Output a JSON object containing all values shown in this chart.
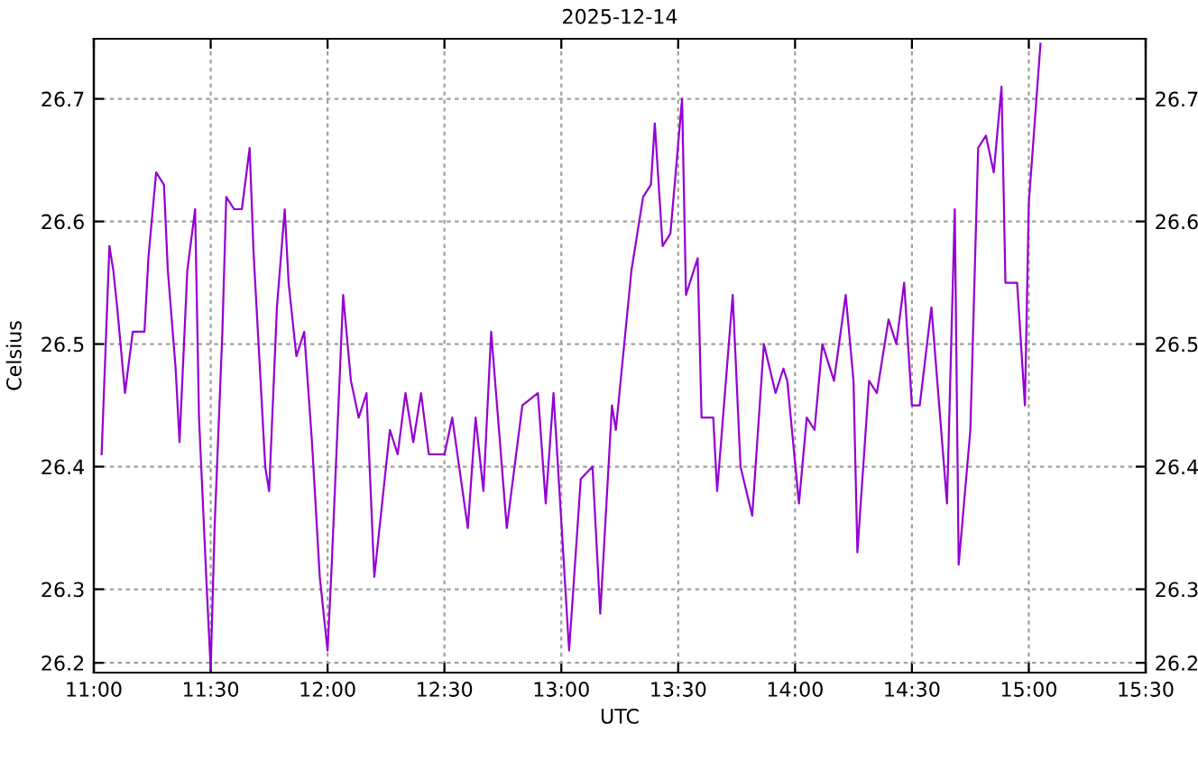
{
  "chart_data": {
    "type": "line",
    "title": "2025-12-14",
    "xlabel": "UTC",
    "ylabel": "Celsius",
    "x": [
      "2025-12-14T11:02",
      "2025-12-14T11:04",
      "2025-12-14T11:05",
      "2025-12-14T11:06",
      "2025-12-14T11:08",
      "2025-12-14T11:10",
      "2025-12-14T11:13",
      "2025-12-14T11:14",
      "2025-12-14T11:16",
      "2025-12-14T11:18",
      "2025-12-14T11:19",
      "2025-12-14T11:21",
      "2025-12-14T11:22",
      "2025-12-14T11:24",
      "2025-12-14T11:26",
      "2025-12-14T11:27",
      "2025-12-14T11:29",
      "2025-12-14T11:30",
      "2025-12-14T11:31",
      "2025-12-14T11:33",
      "2025-12-14T11:34",
      "2025-12-14T11:36",
      "2025-12-14T11:38",
      "2025-12-14T11:40",
      "2025-12-14T11:41",
      "2025-12-14T11:44",
      "2025-12-14T11:45",
      "2025-12-14T11:47",
      "2025-12-14T11:49",
      "2025-12-14T11:50",
      "2025-12-14T11:52",
      "2025-12-14T11:54",
      "2025-12-14T11:56",
      "2025-12-14T11:58",
      "2025-12-14T12:00",
      "2025-12-14T12:01",
      "2025-12-14T12:04",
      "2025-12-14T12:06",
      "2025-12-14T12:08",
      "2025-12-14T12:10",
      "2025-12-14T12:12",
      "2025-12-14T12:15",
      "2025-12-14T12:16",
      "2025-12-14T12:18",
      "2025-12-14T12:20",
      "2025-12-14T12:22",
      "2025-12-14T12:24",
      "2025-12-14T12:26",
      "2025-12-14T12:30",
      "2025-12-14T12:32",
      "2025-12-14T12:36",
      "2025-12-14T12:38",
      "2025-12-14T12:40",
      "2025-12-14T12:42",
      "2025-12-14T12:46",
      "2025-12-14T12:50",
      "2025-12-14T12:54",
      "2025-12-14T12:56",
      "2025-12-14T12:58",
      "2025-12-14T13:02",
      "2025-12-14T13:05",
      "2025-12-14T13:08",
      "2025-12-14T13:10",
      "2025-12-14T13:13",
      "2025-12-14T13:14",
      "2025-12-14T13:18",
      "2025-12-14T13:21",
      "2025-12-14T13:23",
      "2025-12-14T13:24",
      "2025-12-14T13:26",
      "2025-12-14T13:28",
      "2025-12-14T13:31",
      "2025-12-14T13:32",
      "2025-12-14T13:35",
      "2025-12-14T13:36",
      "2025-12-14T13:39",
      "2025-12-14T13:40",
      "2025-12-14T13:44",
      "2025-12-14T13:46",
      "2025-12-14T13:49",
      "2025-12-14T13:52",
      "2025-12-14T13:55",
      "2025-12-14T13:57",
      "2025-12-14T13:58",
      "2025-12-14T14:01",
      "2025-12-14T14:03",
      "2025-12-14T14:05",
      "2025-12-14T14:07",
      "2025-12-14T14:10",
      "2025-12-14T14:13",
      "2025-12-14T14:15",
      "2025-12-14T14:16",
      "2025-12-14T14:19",
      "2025-12-14T14:21",
      "2025-12-14T14:24",
      "2025-12-14T14:26",
      "2025-12-14T14:28",
      "2025-12-14T14:30",
      "2025-12-14T14:32",
      "2025-12-14T14:35",
      "2025-12-14T14:39",
      "2025-12-14T14:41",
      "2025-12-14T14:42",
      "2025-12-14T14:45",
      "2025-12-14T14:47",
      "2025-12-14T14:49",
      "2025-12-14T14:51",
      "2025-12-14T14:53",
      "2025-12-14T14:54",
      "2025-12-14T14:57",
      "2025-12-14T14:59",
      "2025-12-14T15:00",
      "2025-12-14T15:03"
    ],
    "series": [
      {
        "color": "#9400d3",
        "values": [
          26.41,
          26.58,
          26.56,
          26.53,
          26.46,
          26.51,
          26.51,
          26.57,
          26.64,
          26.63,
          26.56,
          26.48,
          26.42,
          26.56,
          26.61,
          26.44,
          26.3,
          26.235,
          26.35,
          26.51,
          26.62,
          26.61,
          26.61,
          26.66,
          26.575,
          26.4,
          26.38,
          26.53,
          26.61,
          26.55,
          26.49,
          26.51,
          26.42,
          26.31,
          26.25,
          26.315,
          26.54,
          26.47,
          26.44,
          26.46,
          26.31,
          26.4,
          26.43,
          26.41,
          26.46,
          26.42,
          26.46,
          26.41,
          26.41,
          26.44,
          26.35,
          26.44,
          26.38,
          26.51,
          26.35,
          26.45,
          26.46,
          26.37,
          26.46,
          26.25,
          26.39,
          26.4,
          26.28,
          26.45,
          26.43,
          26.56,
          26.62,
          26.63,
          26.68,
          26.58,
          26.59,
          26.7,
          26.54,
          26.57,
          26.44,
          26.44,
          26.38,
          26.54,
          26.4,
          26.36,
          26.5,
          26.46,
          26.48,
          26.47,
          26.37,
          26.44,
          26.43,
          26.5,
          26.47,
          26.54,
          26.47,
          26.33,
          26.47,
          26.46,
          26.52,
          26.5,
          26.55,
          26.45,
          26.45,
          26.53,
          26.37,
          26.61,
          26.32,
          26.43,
          26.66,
          26.67,
          26.64,
          26.71,
          26.55,
          26.55,
          26.45,
          26.615,
          26.745
        ]
      }
    ],
    "xlim": [
      "2025-12-14T11:00",
      "2025-12-14T15:30"
    ],
    "xticks": [
      {
        "value": "2025-12-14T11:00",
        "label": "11:00"
      },
      {
        "value": "2025-12-14T11:30",
        "label": "11:30"
      },
      {
        "value": "2025-12-14T12:00",
        "label": "12:00"
      },
      {
        "value": "2025-12-14T12:30",
        "label": "12:30"
      },
      {
        "value": "2025-12-14T13:00",
        "label": "13:00"
      },
      {
        "value": "2025-12-14T13:30",
        "label": "13:30"
      },
      {
        "value": "2025-12-14T14:00",
        "label": "14:00"
      },
      {
        "value": "2025-12-14T14:30",
        "label": "14:30"
      },
      {
        "value": "2025-12-14T15:00",
        "label": "15:00"
      },
      {
        "value": "2025-12-14T15:30",
        "label": "15:30"
      }
    ],
    "ylim": [
      26.232,
      26.749
    ],
    "yticks": [
      {
        "value": 26.24,
        "label": "26.2"
      },
      26.3,
      26.4,
      26.5,
      26.6,
      26.7
    ],
    "y2lim": [
      26.232,
      26.749
    ],
    "y2ticks": [
      {
        "value": 26.24,
        "label": "26.2"
      },
      26.3,
      26.4,
      26.5,
      26.6,
      26.7
    ],
    "grid": true,
    "marker": "none",
    "line_style": "solid"
  }
}
